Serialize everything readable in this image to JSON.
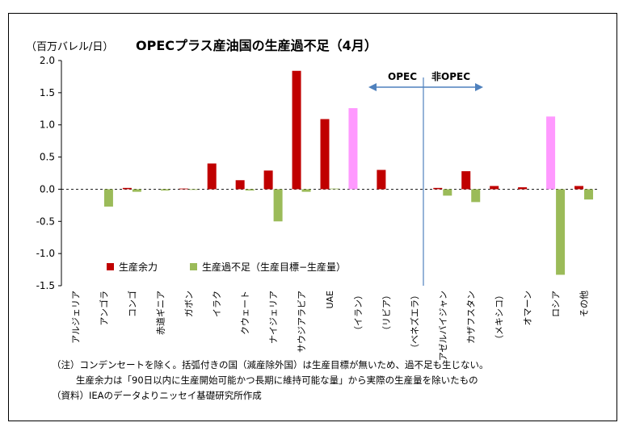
{
  "chart_data": {
    "type": "bar",
    "title": "OPECプラス産油国の生産過不足（4月）",
    "unit_label": "（百万バレル/日）",
    "ylim": [
      -1.5,
      2.0
    ],
    "yticks": [
      "2.0",
      "1.5",
      "1.0",
      "0.5",
      "0.0",
      "-0.5",
      "-1.0",
      "-1.5"
    ],
    "grid": false,
    "legend_position": "lower-left",
    "categories": [
      "アルジェリア",
      "アンゴラ",
      "コンゴ",
      "赤道ギニア",
      "ガボン",
      "イラク",
      "クウェート",
      "ナイジェリア",
      "サウジアラビア",
      "UAE",
      "（イラン）",
      "（リビア）",
      "（ベネズエラ）",
      "アゼルバイジャン",
      "カザフスタン",
      "（メキシコ）",
      "オマーン",
      "ロシア",
      "その他"
    ],
    "series": [
      {
        "name": "生産余力",
        "color": "#c00000",
        "values": [
          0.0,
          0.0,
          0.02,
          0.0,
          0.01,
          0.4,
          0.14,
          0.29,
          1.84,
          1.09,
          1.26,
          0.3,
          0.0,
          0.02,
          0.28,
          0.05,
          0.03,
          1.13,
          0.05
        ]
      },
      {
        "name": "生産過不足（生産目標−生産量）",
        "color": "#9bbb59",
        "values": [
          0.0,
          -0.27,
          -0.04,
          -0.02,
          -0.01,
          0.0,
          -0.02,
          -0.5,
          -0.04,
          0.01,
          0.0,
          0.0,
          0.0,
          -0.1,
          -0.2,
          0.0,
          0.0,
          -1.33,
          -0.16
        ]
      }
    ],
    "highlight_color": "#ff99ff",
    "highlight_categories": [
      "（イラン）",
      "ロシア"
    ],
    "annotations": {
      "opec_label": "OPEC",
      "non_opec_label": "非OPEC"
    }
  },
  "notes": {
    "line1": "（注）コンデンセートを除く。括弧付きの国（減産除外国）は生産目標が無いため、過不足も生じない。",
    "line2": "生産余力は「90日以内に生産開始可能かつ長期に維持可能な量」から実際の生産量を除いたもの",
    "source": "（資料）IEAのデータよりニッセイ基礎研究所作成"
  }
}
